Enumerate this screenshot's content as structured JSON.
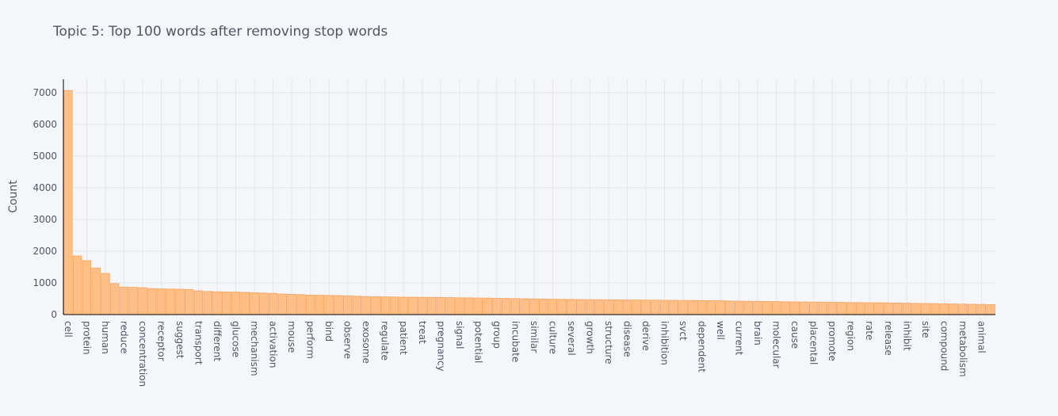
{
  "chart_data": {
    "type": "bar",
    "title": "Topic 5: Top 100 words after removing stop words",
    "ylabel": "Count",
    "categories": [
      "cell",
      null,
      "protein",
      null,
      "human",
      null,
      "reduce",
      null,
      "concentration",
      null,
      "receptor",
      null,
      "suggest",
      null,
      "transport",
      null,
      "different",
      null,
      "glucose",
      null,
      "mechanism",
      null,
      "activation",
      null,
      "mouse",
      null,
      "perform",
      null,
      "bind",
      null,
      "observe",
      null,
      "exosome",
      null,
      "regulate",
      null,
      "patient",
      null,
      "treat",
      null,
      "pregnancy",
      null,
      "signal",
      null,
      "potential",
      null,
      "group",
      null,
      "incubate",
      null,
      "similar",
      null,
      "culture",
      null,
      "several",
      null,
      "growth",
      null,
      "structure",
      null,
      "disease",
      null,
      "derive",
      null,
      "inhibition",
      null,
      "svct",
      null,
      "dependent",
      null,
      "well",
      null,
      "current",
      null,
      "brain",
      null,
      "molecular",
      null,
      "cause",
      null,
      "placental",
      null,
      "promote",
      null,
      "region",
      null,
      "rate",
      null,
      "release",
      null,
      "inhibit",
      null,
      "site",
      null,
      "compound",
      null,
      "metabolism",
      null,
      "animal",
      null
    ],
    "values": [
      7070,
      1850,
      1700,
      1470,
      1300,
      980,
      870,
      860,
      850,
      820,
      810,
      805,
      800,
      790,
      750,
      730,
      720,
      715,
      710,
      700,
      690,
      680,
      670,
      650,
      640,
      630,
      615,
      610,
      605,
      600,
      590,
      580,
      570,
      565,
      560,
      555,
      550,
      548,
      545,
      542,
      540,
      535,
      530,
      528,
      525,
      520,
      515,
      510,
      505,
      500,
      495,
      490,
      485,
      480,
      478,
      475,
      472,
      470,
      468,
      465,
      462,
      460,
      457,
      455,
      452,
      450,
      447,
      445,
      442,
      440,
      435,
      430,
      425,
      420,
      418,
      415,
      410,
      405,
      400,
      398,
      395,
      392,
      388,
      385,
      380,
      378,
      375,
      372,
      370,
      365,
      360,
      355,
      350,
      345,
      340,
      335,
      330,
      325,
      320,
      315
    ],
    "color": "#ffbf87",
    "ylim": [
      0,
      7425
    ],
    "yticks": [
      0,
      1000,
      2000,
      3000,
      4000,
      5000,
      6000,
      7000
    ],
    "grid": true
  }
}
